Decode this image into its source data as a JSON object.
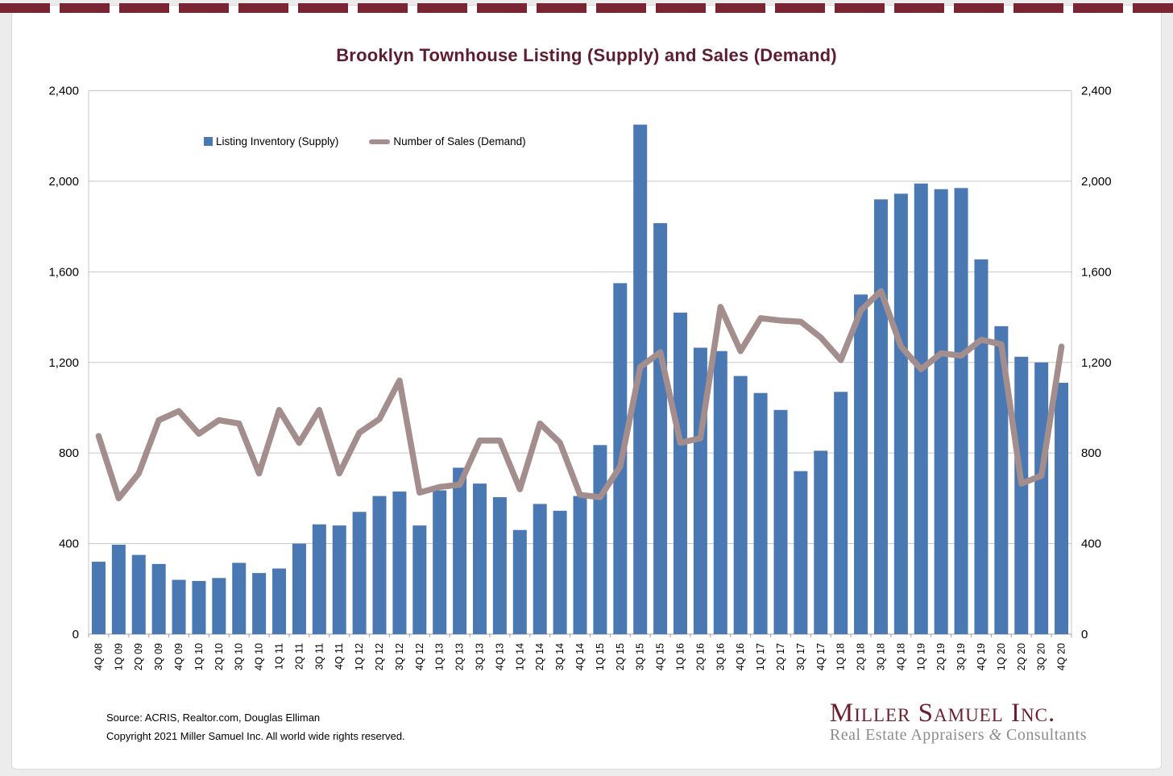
{
  "page": {
    "title": "Brooklyn Townhouse Listing (Supply) and Sales (Demand)"
  },
  "legend": [
    {
      "label": "Listing Inventory (Supply)",
      "swatch": "bar-square"
    },
    {
      "label": "Number of Sales (Demand)",
      "swatch": "line-dash"
    }
  ],
  "chart_data": {
    "type": "combo",
    "title": "Brooklyn Townhouse Listing (Supply) and Sales (Demand)",
    "categories": [
      "4Q 08",
      "1Q 09",
      "2Q 09",
      "3Q 09",
      "4Q 09",
      "1Q 10",
      "2Q 10",
      "3Q 10",
      "4Q 10",
      "1Q 11",
      "2Q 11",
      "3Q 11",
      "4Q 11",
      "1Q 12",
      "2Q 12",
      "3Q 12",
      "4Q 12",
      "1Q 13",
      "2Q 13",
      "3Q 13",
      "4Q 13",
      "1Q 14",
      "2Q 14",
      "3Q 14",
      "4Q 14",
      "1Q 15",
      "2Q 15",
      "3Q 15",
      "4Q 15",
      "1Q 16",
      "2Q 16",
      "3Q 16",
      "4Q 16",
      "1Q 17",
      "2Q 17",
      "3Q 17",
      "4Q 17",
      "1Q 18",
      "2Q 18",
      "3Q 18",
      "4Q 18",
      "1Q 19",
      "2Q 19",
      "3Q 19",
      "4Q 19",
      "1Q 20",
      "2Q 20",
      "3Q 20",
      "4Q 20"
    ],
    "series": [
      {
        "name": "Listing Inventory (Supply)",
        "type": "bar",
        "values": [
          320,
          395,
          350,
          310,
          240,
          235,
          248,
          315,
          270,
          290,
          400,
          485,
          480,
          540,
          610,
          630,
          480,
          635,
          735,
          665,
          605,
          460,
          575,
          545,
          610,
          835,
          1550,
          2250,
          1815,
          1420,
          1265,
          1250,
          1140,
          1065,
          990,
          720,
          810,
          1070,
          1500,
          1920,
          1945,
          1990,
          1965,
          1970,
          1655,
          1360,
          1225,
          1200,
          1110
        ]
      },
      {
        "name": "Number of Sales (Demand)",
        "type": "line",
        "values": [
          875,
          600,
          710,
          945,
          985,
          885,
          945,
          930,
          710,
          990,
          845,
          990,
          710,
          890,
          950,
          1120,
          625,
          650,
          660,
          855,
          855,
          640,
          930,
          845,
          615,
          605,
          740,
          1180,
          1245,
          845,
          865,
          1445,
          1250,
          1395,
          1385,
          1380,
          1310,
          1210,
          1430,
          1515,
          1270,
          1170,
          1240,
          1230,
          1300,
          1280,
          665,
          700,
          1270
        ]
      }
    ],
    "ylim": [
      0,
      2400
    ],
    "ytick_interval": 400,
    "yticks": [
      "0",
      "400",
      "800",
      "1,200",
      "1,600",
      "2,000",
      "2,400"
    ],
    "grid": true,
    "y_axis_sides": "both",
    "legend_position": "inside-top-left",
    "x_label_rotation": -90
  },
  "footer": {
    "source": "Source: ACRIS, Realtor.com, Douglas Elliman",
    "copyright": "Copyright 2021 Miller Samuel Inc.  All world wide rights reserved."
  },
  "logo": {
    "display": "Miller Samuel Inc.",
    "tagline_pre": "Real Estate Appraisers ",
    "tagline_amp": "&",
    "tagline_post": " Consultants"
  },
  "colors": {
    "bar": "#4a78b2",
    "line": "#a48e8d",
    "grid": "#c6c6c6",
    "axis": "#a0a0a0",
    "title": "#5e1d31",
    "strip": "#7a2533",
    "logo": "#6b1f2f",
    "tagline": "#8c8c8c"
  }
}
